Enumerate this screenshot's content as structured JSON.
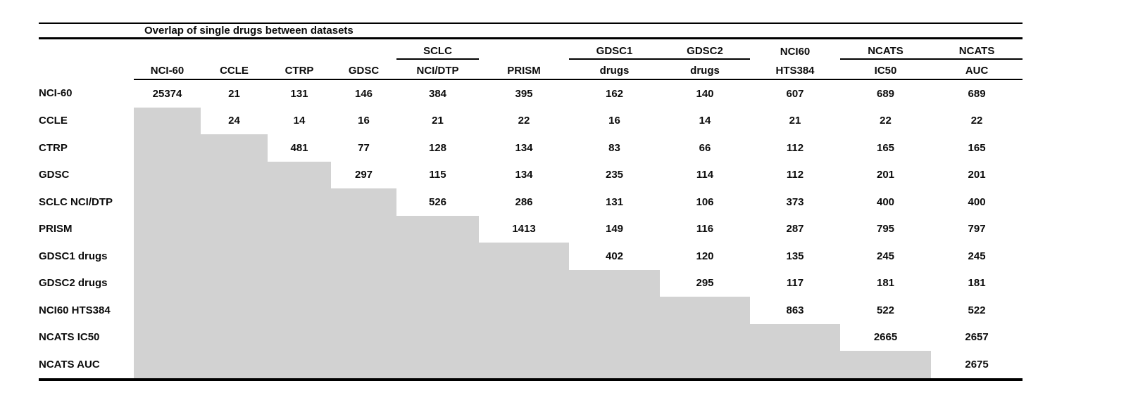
{
  "title": "Overlap of single drugs between datasets",
  "colors": {
    "shaded_cell": "#d2d2d2",
    "rule": "#000000",
    "text": "#0c0c0c",
    "background": "#ffffff"
  },
  "columns": [
    {
      "line1": "",
      "line2": "NCI-60",
      "group_underline": false
    },
    {
      "line1": "",
      "line2": "CCLE",
      "group_underline": false
    },
    {
      "line1": "",
      "line2": "CTRP",
      "group_underline": false
    },
    {
      "line1": "",
      "line2": "GDSC",
      "group_underline": false
    },
    {
      "line1": "SCLC",
      "line2": "NCI/DTP",
      "group_underline": true
    },
    {
      "line1": "",
      "line2": "PRISM",
      "group_underline": false
    },
    {
      "line1": "GDSC1",
      "line2": "drugs",
      "group_underline": true
    },
    {
      "line1": "GDSC2",
      "line2": "drugs",
      "group_underline": true
    },
    {
      "line1": "NCI60",
      "line2": "HTS384",
      "group_underline": false
    },
    {
      "line1": "NCATS",
      "line2": "IC50",
      "group_underline": true
    },
    {
      "line1": "NCATS",
      "line2": "AUC",
      "group_underline": true
    }
  ],
  "rows": [
    {
      "label": "NCI-60",
      "values": [
        "25374",
        "21",
        "131",
        "146",
        "384",
        "395",
        "162",
        "140",
        "607",
        "689",
        "689"
      ]
    },
    {
      "label": "CCLE",
      "values": [
        null,
        "24",
        "14",
        "16",
        "21",
        "22",
        "16",
        "14",
        "21",
        "22",
        "22"
      ]
    },
    {
      "label": "CTRP",
      "values": [
        null,
        null,
        "481",
        "77",
        "128",
        "134",
        "83",
        "66",
        "112",
        "165",
        "165"
      ]
    },
    {
      "label": "GDSC",
      "values": [
        null,
        null,
        null,
        "297",
        "115",
        "134",
        "235",
        "114",
        "112",
        "201",
        "201"
      ]
    },
    {
      "label": "SCLC NCI/DTP",
      "values": [
        null,
        null,
        null,
        null,
        "526",
        "286",
        "131",
        "106",
        "373",
        "400",
        "400"
      ]
    },
    {
      "label": "PRISM",
      "values": [
        null,
        null,
        null,
        null,
        null,
        "1413",
        "149",
        "116",
        "287",
        "795",
        "797"
      ]
    },
    {
      "label": "GDSC1 drugs",
      "values": [
        null,
        null,
        null,
        null,
        null,
        null,
        "402",
        "120",
        "135",
        "245",
        "245"
      ]
    },
    {
      "label": "GDSC2 drugs",
      "values": [
        null,
        null,
        null,
        null,
        null,
        null,
        null,
        "295",
        "117",
        "181",
        "181"
      ]
    },
    {
      "label": "NCI60 HTS384",
      "values": [
        null,
        null,
        null,
        null,
        null,
        null,
        null,
        null,
        "863",
        "522",
        "522"
      ]
    },
    {
      "label": "NCATS IC50",
      "values": [
        null,
        null,
        null,
        null,
        null,
        null,
        null,
        null,
        null,
        "2665",
        "2657"
      ]
    },
    {
      "label": "NCATS AUC",
      "values": [
        null,
        null,
        null,
        null,
        null,
        null,
        null,
        null,
        null,
        null,
        "2675"
      ]
    }
  ],
  "chart_data": {
    "type": "table",
    "title": "Overlap of single drugs between datasets",
    "categories": [
      "NCI-60",
      "CCLE",
      "CTRP",
      "GDSC",
      "SCLC NCI/DTP",
      "PRISM",
      "GDSC1 drugs",
      "GDSC2 drugs",
      "NCI60 HTS384",
      "NCATS IC50",
      "NCATS AUC"
    ],
    "matrix_upper_triangle": [
      [
        25374,
        21,
        131,
        146,
        384,
        395,
        162,
        140,
        607,
        689,
        689
      ],
      [
        null,
        24,
        14,
        16,
        21,
        22,
        16,
        14,
        21,
        22,
        22
      ],
      [
        null,
        null,
        481,
        77,
        128,
        134,
        83,
        66,
        112,
        165,
        165
      ],
      [
        null,
        null,
        null,
        297,
        115,
        134,
        235,
        114,
        112,
        201,
        201
      ],
      [
        null,
        null,
        null,
        null,
        526,
        286,
        131,
        106,
        373,
        400,
        400
      ],
      [
        null,
        null,
        null,
        null,
        null,
        1413,
        149,
        116,
        287,
        795,
        797
      ],
      [
        null,
        null,
        null,
        null,
        null,
        null,
        402,
        120,
        135,
        245,
        245
      ],
      [
        null,
        null,
        null,
        null,
        null,
        null,
        null,
        295,
        117,
        181,
        181
      ],
      [
        null,
        null,
        null,
        null,
        null,
        null,
        null,
        null,
        863,
        522,
        522
      ],
      [
        null,
        null,
        null,
        null,
        null,
        null,
        null,
        null,
        null,
        2665,
        2657
      ],
      [
        null,
        null,
        null,
        null,
        null,
        null,
        null,
        null,
        null,
        null,
        2675
      ]
    ],
    "layout_hints": "lower triangle shaded gray; diagonal holds within-dataset drug counts"
  }
}
